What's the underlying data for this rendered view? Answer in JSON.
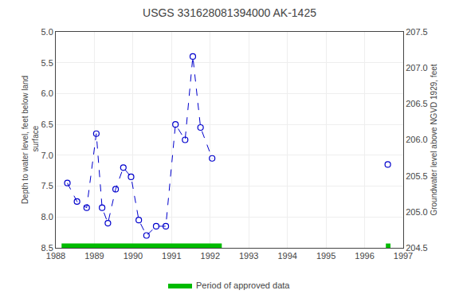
{
  "chart_data": {
    "type": "line",
    "title": "USGS 331628081394000 AK-1425",
    "y_label": "Depth to water level, feet below land\n surface",
    "y2_label": "Groundwater level above NGVD 1929, feet",
    "xlim": [
      1988,
      1997
    ],
    "xticks": [
      1988,
      1989,
      1990,
      1991,
      1992,
      1993,
      1994,
      1995,
      1996,
      1997
    ],
    "ylim": [
      8.5,
      5.0
    ],
    "yticks": [
      {
        "value": 5.0,
        "label": "5.0"
      },
      5.5,
      {
        "value": 6.0,
        "label": "6.0"
      },
      6.5,
      {
        "value": 7.0,
        "label": "7.0"
      },
      7.5,
      {
        "value": 8.0,
        "label": "8.0"
      },
      8.5
    ],
    "y2lim": [
      204.5,
      207.5
    ],
    "y2ticks": [
      204.5,
      {
        "value": 205.0,
        "label": "205.0"
      },
      205.5,
      {
        "value": 206.0,
        "label": "206.0"
      },
      206.5,
      {
        "value": 207.0,
        "label": "207.0"
      },
      207.5
    ],
    "grid": true,
    "series": [
      {
        "color": "#0000cc",
        "marker": "circle-open",
        "line_style": "dash",
        "x": [
          1988.3,
          1988.55,
          1988.8,
          1989.05,
          1989.2,
          1989.35,
          1989.55,
          1989.75,
          1989.95,
          1990.15,
          1990.35,
          1990.6,
          1990.85,
          1991.1,
          1991.35,
          1991.55,
          1991.75,
          1992.05
        ],
        "values": [
          7.45,
          7.75,
          7.85,
          6.65,
          7.85,
          8.1,
          7.55,
          7.2,
          7.35,
          8.05,
          8.3,
          8.15,
          8.15,
          6.5,
          6.75,
          5.4,
          6.55,
          7.05
        ]
      },
      {
        "color": "#0000cc",
        "marker": "circle-open",
        "line_style": "dash",
        "x": [
          1996.6
        ],
        "values": [
          7.15
        ]
      }
    ],
    "approved_periods": {
      "name": "Period of approved data",
      "color": "#00bb00",
      "ranges": [
        [
          1988.15,
          1992.3
        ],
        [
          1996.55,
          1996.67
        ]
      ],
      "y": [
        8.43,
        8.5
      ]
    }
  }
}
